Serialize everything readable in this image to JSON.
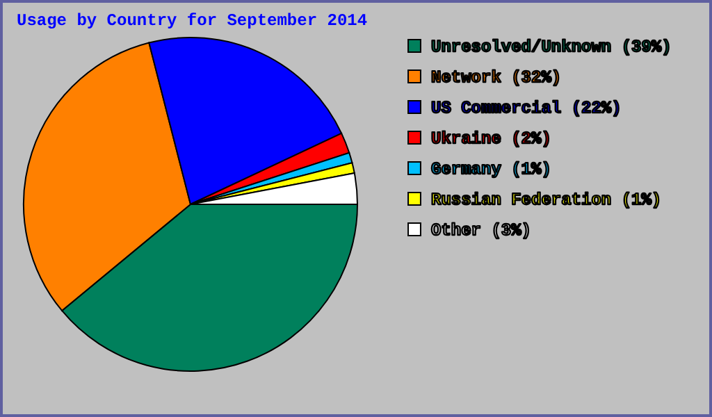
{
  "chart_data": {
    "type": "pie",
    "title": "Usage by Country for September 2014",
    "categories": [
      "Unresolved/Unknown (39%)",
      "Network (32%)",
      "US Commercial (22%)",
      "Ukraine (2%)",
      "Germany (1%)",
      "Russian Federation (1%)",
      "Other (3%)"
    ],
    "values": [
      39,
      32,
      22,
      2,
      1,
      1,
      3
    ],
    "colors": [
      "#00805c",
      "#ff8000",
      "#0000ff",
      "#ff0000",
      "#00c0ff",
      "#ffff00",
      "#ffffff"
    ],
    "legend": "right"
  }
}
